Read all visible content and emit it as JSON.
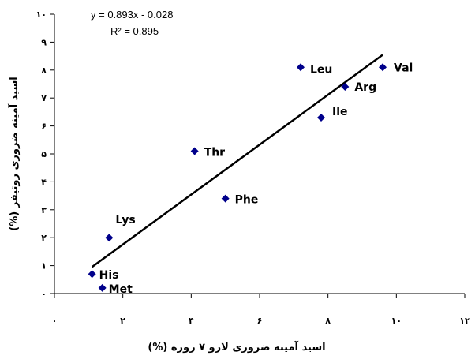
{
  "chart_data": {
    "type": "scatter",
    "title": "",
    "xlabel": "اسید آمینه ضروری لارو ۷ روزه (%)",
    "ylabel": "اسید آمینه ضروری روتیفر (%)",
    "xlim": [
      0,
      12
    ],
    "ylim": [
      0,
      10
    ],
    "x_ticks": [
      0,
      2,
      4,
      6,
      8,
      10,
      12
    ],
    "x_tick_labels": [
      "۰",
      "۲",
      "۴",
      "۶",
      "۸",
      "۱۰",
      "۱۲"
    ],
    "y_ticks": [
      0,
      1,
      2,
      3,
      4,
      5,
      6,
      7,
      8,
      9,
      10
    ],
    "y_tick_labels": [
      "۰",
      "۱",
      "۲",
      "۳",
      "۴",
      "۵",
      "۶",
      "۷",
      "۸",
      "۹",
      "۱۰"
    ],
    "grid": false,
    "legend": "none",
    "marker_color": "#00008B",
    "line_color": "#000000",
    "points": [
      {
        "label": "His",
        "x": 1.1,
        "y": 0.7
      },
      {
        "label": "Met",
        "x": 1.4,
        "y": 0.2
      },
      {
        "label": "Lys",
        "x": 1.6,
        "y": 2.0
      },
      {
        "label": "Thr",
        "x": 4.1,
        "y": 5.1
      },
      {
        "label": "Phe",
        "x": 5.0,
        "y": 3.4
      },
      {
        "label": "Leu",
        "x": 7.2,
        "y": 8.1
      },
      {
        "label": "Ile",
        "x": 7.8,
        "y": 6.3
      },
      {
        "label": "Arg",
        "x": 8.5,
        "y": 7.4
      },
      {
        "label": "Val",
        "x": 9.6,
        "y": 8.1
      }
    ],
    "trendline": {
      "slope": 0.893,
      "intercept": -0.028,
      "x_range": [
        1.1,
        9.6
      ]
    },
    "equation_text": "y = 0.893x - 0.028",
    "r2_text": "R² = 0.895"
  }
}
